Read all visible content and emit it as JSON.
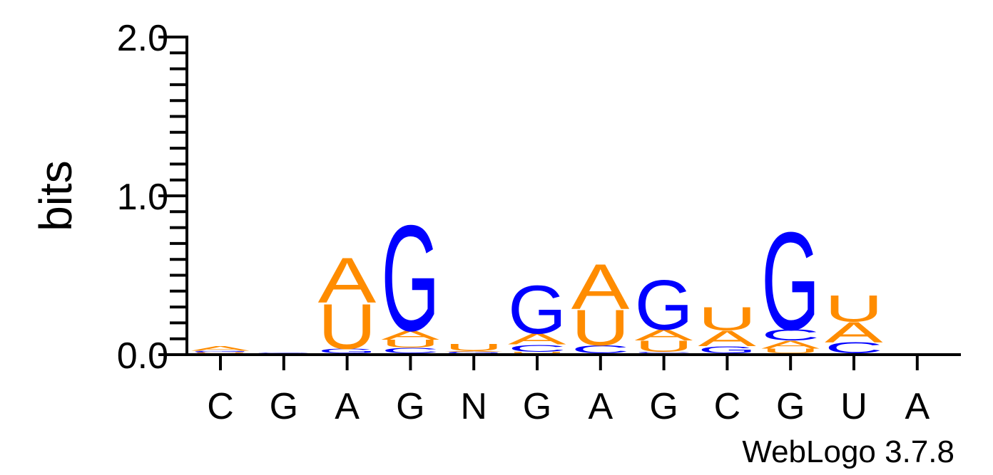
{
  "chart_data": {
    "type": "sequence-logo",
    "ylabel": "bits",
    "ylim": [
      0,
      2
    ],
    "yticks": [
      "0.0",
      "1.0",
      "2.0"
    ],
    "xlabels": [
      "C",
      "G",
      "A",
      "G",
      "N",
      "G",
      "A",
      "G",
      "C",
      "G",
      "U",
      "A"
    ],
    "colors": {
      "A": "#ff8c00",
      "U": "#ff8c00",
      "G": "#0000ff",
      "C": "#0000ff"
    },
    "columns": [
      [
        {
          "letter": "U",
          "bits": 0.005
        },
        {
          "letter": "C",
          "bits": 0.005
        },
        {
          "letter": "G",
          "bits": 0.005
        },
        {
          "letter": "A",
          "bits": 0.03
        }
      ],
      [
        {
          "letter": "C",
          "bits": 0.002
        },
        {
          "letter": "G",
          "bits": 0.003
        }
      ],
      [
        {
          "letter": "G",
          "bits": 0.03
        },
        {
          "letter": "U",
          "bits": 0.29
        },
        {
          "letter": "A",
          "bits": 0.29
        }
      ],
      [
        {
          "letter": "C",
          "bits": 0.035
        },
        {
          "letter": "U",
          "bits": 0.05
        },
        {
          "letter": "A",
          "bits": 0.06
        },
        {
          "letter": "G",
          "bits": 0.68
        }
      ],
      [
        {
          "letter": "G",
          "bits": 0.005
        },
        {
          "letter": "C",
          "bits": 0.005
        },
        {
          "letter": "A",
          "bits": 0.005
        },
        {
          "letter": "U",
          "bits": 0.045
        }
      ],
      [
        {
          "letter": "U",
          "bits": 0.01
        },
        {
          "letter": "C",
          "bits": 0.045
        },
        {
          "letter": "A",
          "bits": 0.07
        },
        {
          "letter": "G",
          "bits": 0.31
        }
      ],
      [
        {
          "letter": "C",
          "bits": 0.05
        },
        {
          "letter": "U",
          "bits": 0.23
        },
        {
          "letter": "A",
          "bits": 0.29
        }
      ],
      [
        {
          "letter": "C",
          "bits": 0.01
        },
        {
          "letter": "U",
          "bits": 0.07
        },
        {
          "letter": "A",
          "bits": 0.07
        },
        {
          "letter": "G",
          "bits": 0.32
        }
      ],
      [
        {
          "letter": "G",
          "bits": 0.045
        },
        {
          "letter": "A",
          "bits": 0.1
        },
        {
          "letter": "U",
          "bits": 0.15
        }
      ],
      [
        {
          "letter": "U",
          "bits": 0.03
        },
        {
          "letter": "A",
          "bits": 0.05
        },
        {
          "letter": "C",
          "bits": 0.07
        },
        {
          "letter": "G",
          "bits": 0.63
        }
      ],
      [
        {
          "letter": "C",
          "bits": 0.07
        },
        {
          "letter": "A",
          "bits": 0.13
        },
        {
          "letter": "U",
          "bits": 0.17
        }
      ],
      []
    ]
  },
  "footer": "WebLogo 3.7.8"
}
